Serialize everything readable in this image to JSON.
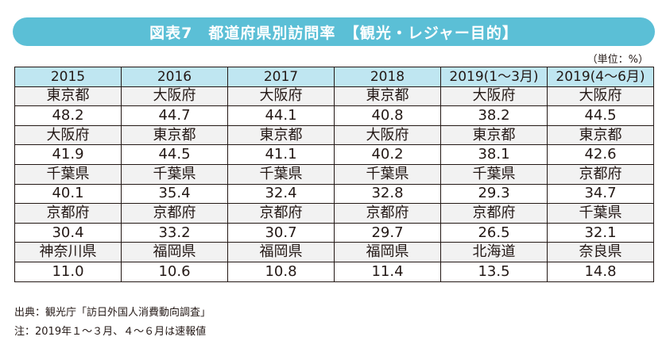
{
  "title": "図表7　都道府県別訪問率　【観光・レジャー目的】",
  "unit": "（単位：%）",
  "table": {
    "headers": [
      "2015",
      "2016",
      "2017",
      "2018",
      "2019(1～3月)",
      "2019(4～6月)"
    ],
    "rows": [
      {
        "prefectures": [
          "東京都",
          "大阪府",
          "大阪府",
          "東京都",
          "大阪府",
          "大阪府"
        ],
        "values": [
          "48.2",
          "44.7",
          "44.1",
          "40.8",
          "38.2",
          "44.5"
        ]
      },
      {
        "prefectures": [
          "大阪府",
          "東京都",
          "東京都",
          "大阪府",
          "東京都",
          "東京都"
        ],
        "values": [
          "41.9",
          "44.5",
          "41.1",
          "40.2",
          "38.1",
          "42.6"
        ]
      },
      {
        "prefectures": [
          "千葉県",
          "千葉県",
          "千葉県",
          "千葉県",
          "千葉県",
          "京都府"
        ],
        "values": [
          "40.1",
          "35.4",
          "32.4",
          "32.8",
          "29.3",
          "34.7"
        ]
      },
      {
        "prefectures": [
          "京都府",
          "京都府",
          "京都府",
          "京都府",
          "京都府",
          "千葉県"
        ],
        "values": [
          "30.4",
          "33.2",
          "30.7",
          "29.7",
          "26.5",
          "32.1"
        ]
      },
      {
        "prefectures": [
          "神奈川県",
          "福岡県",
          "福岡県",
          "福岡県",
          "北海道",
          "奈良県"
        ],
        "values": [
          "11.0",
          "10.6",
          "10.8",
          "11.4",
          "13.5",
          "14.8"
        ]
      }
    ]
  },
  "source": "出典：観光庁「訪日外国人消費動向調査」",
  "note": "注：2019年１～３月、４～６月は速報値",
  "colors": {
    "title_bg": "#5bbfd6",
    "header_bg": "#bfe6f1",
    "prefecture_row_bg": "#f2f2f2",
    "border": "#231815"
  }
}
